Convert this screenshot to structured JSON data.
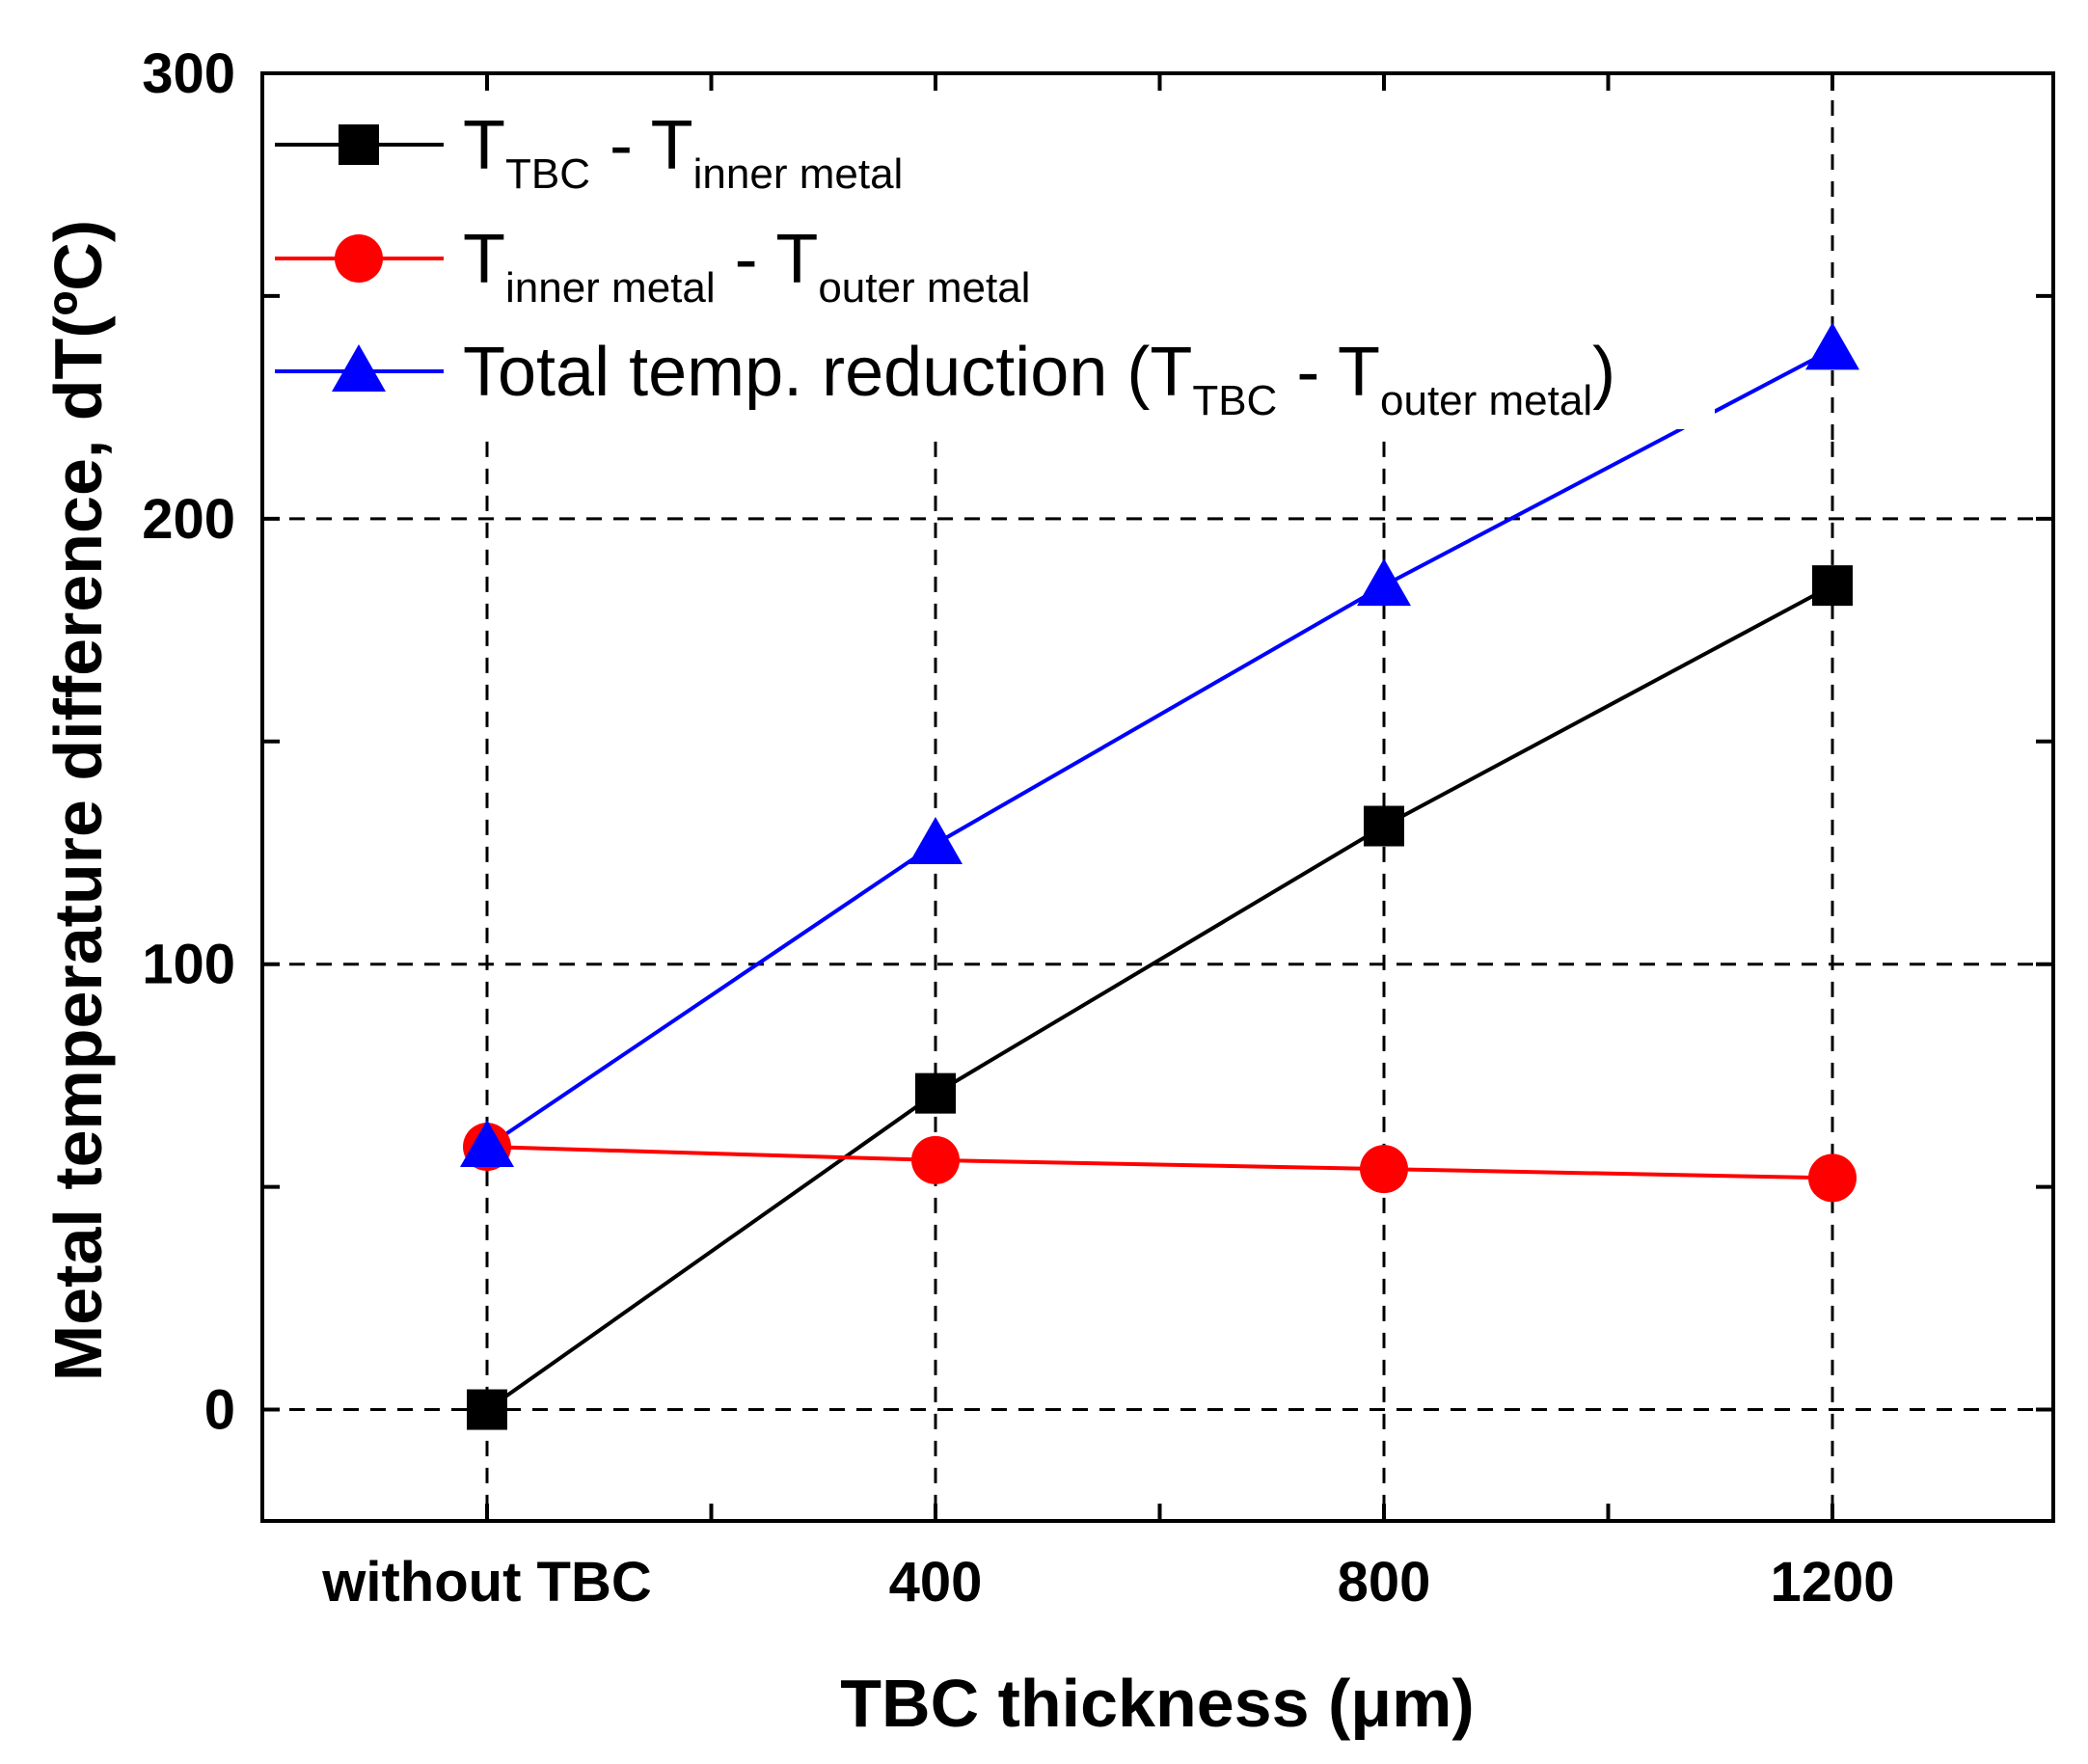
{
  "chart_data": {
    "type": "line",
    "categories": [
      "without TBC",
      "400",
      "800",
      "1200"
    ],
    "xlabel": "TBC thickness (μm)",
    "ylabel": "Metal temperature difference, dT(ºC)",
    "ylim": [
      -25,
      300
    ],
    "yticks": [
      0,
      100,
      200,
      300
    ],
    "grid": "dashed at labeled ticks",
    "legend_position": "top-left",
    "series": [
      {
        "name": "TTBC - Tinner metal",
        "legend_parts": [
          [
            "T",
            ""
          ],
          [
            "TBC",
            "sub"
          ],
          [
            " - T",
            ""
          ],
          [
            "inner metal",
            "sub"
          ]
        ],
        "color": "#000000",
        "marker": "square",
        "values": [
          0,
          71,
          131,
          185
        ]
      },
      {
        "name": "Tinner metal - Touter metal",
        "legend_parts": [
          [
            "T",
            ""
          ],
          [
            "inner metal",
            "sub"
          ],
          [
            " - T",
            ""
          ],
          [
            "outer metal",
            "sub"
          ]
        ],
        "color": "#ff0000",
        "marker": "circle",
        "values": [
          59,
          56,
          54,
          52
        ]
      },
      {
        "name": "Total temp. reduction (TTBC - Touter metal)",
        "legend_parts": [
          [
            "Total temp. reduction (T",
            ""
          ],
          [
            "TBC",
            "sub"
          ],
          [
            " - T",
            ""
          ],
          [
            "outer metal",
            "sub"
          ],
          [
            ")",
            ""
          ]
        ],
        "color": "#0000ff",
        "marker": "triangle",
        "values": [
          59,
          127,
          185,
          238
        ]
      }
    ]
  }
}
